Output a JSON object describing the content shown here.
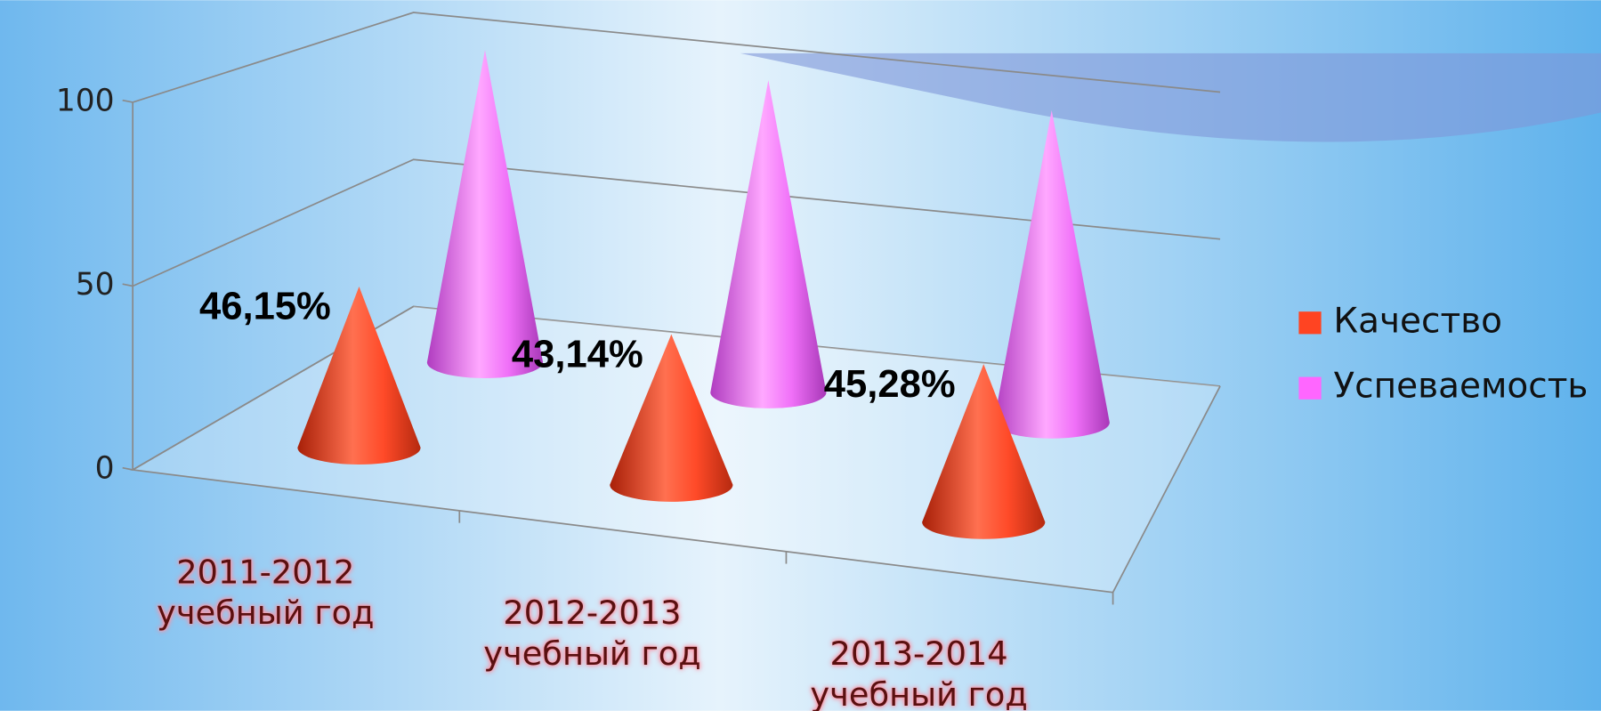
{
  "chart_data": {
    "type": "cone",
    "categories": [
      "2011-2012 учебный год",
      "2012-2013 учебный год",
      "2013-2014 учебный год"
    ],
    "series": [
      {
        "name": "Качество",
        "color": "#ff4422",
        "values": [
          46.15,
          43.14,
          45.28
        ],
        "value_labels": [
          "46,15%",
          "43,14%",
          "45,28%"
        ]
      },
      {
        "name": "Успеваемость",
        "color": "#ff66ff",
        "values": [
          100,
          100,
          100
        ]
      }
    ],
    "ylim": [
      0,
      100
    ],
    "yticks": [
      0,
      50,
      100
    ],
    "grid": true,
    "legend": "right"
  }
}
